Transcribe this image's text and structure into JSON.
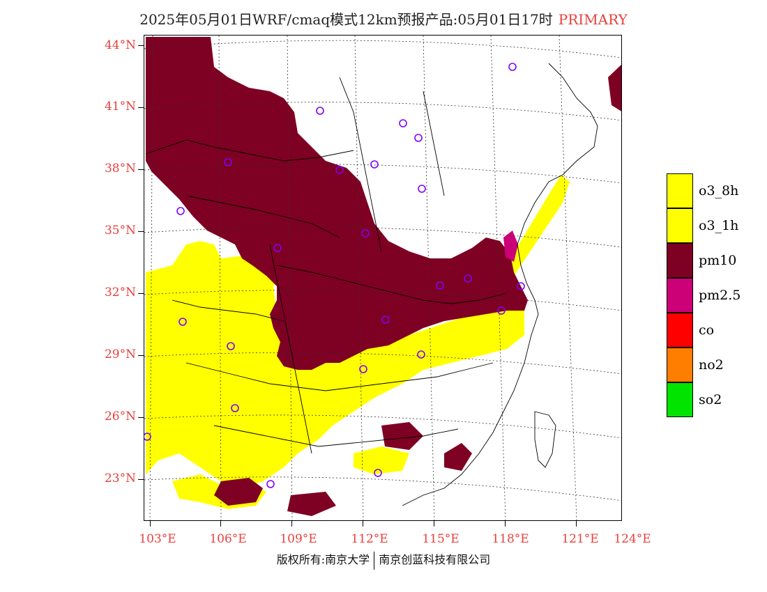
{
  "title": {
    "text": "2025年05月01日WRF/cmaq模式12km预报产品:05月01日17时",
    "tag": "PRIMARY"
  },
  "lat_labels": [
    "44°N",
    "41°N",
    "38°N",
    "35°N",
    "32°N",
    "29°N",
    "26°N",
    "23°N"
  ],
  "lon_labels": [
    "103°E",
    "106°E",
    "109°E",
    "112°E",
    "115°E",
    "118°E",
    "121°E",
    "124°E"
  ],
  "legend": [
    {
      "label": "o3_8h",
      "color": "#ffff00"
    },
    {
      "label": "o3_1h",
      "color": "#ffff00"
    },
    {
      "label": "pm10",
      "color": "#7e0023"
    },
    {
      "label": "pm2.5",
      "color": "#cc0077"
    },
    {
      "label": "co",
      "color": "#ff0000"
    },
    {
      "label": "no2",
      "color": "#ff7e00"
    },
    {
      "label": "so2",
      "color": "#00e400"
    }
  ],
  "footer": {
    "left": "版权所有:南京大学",
    "right": "南京创蓝科技有限公司"
  }
}
